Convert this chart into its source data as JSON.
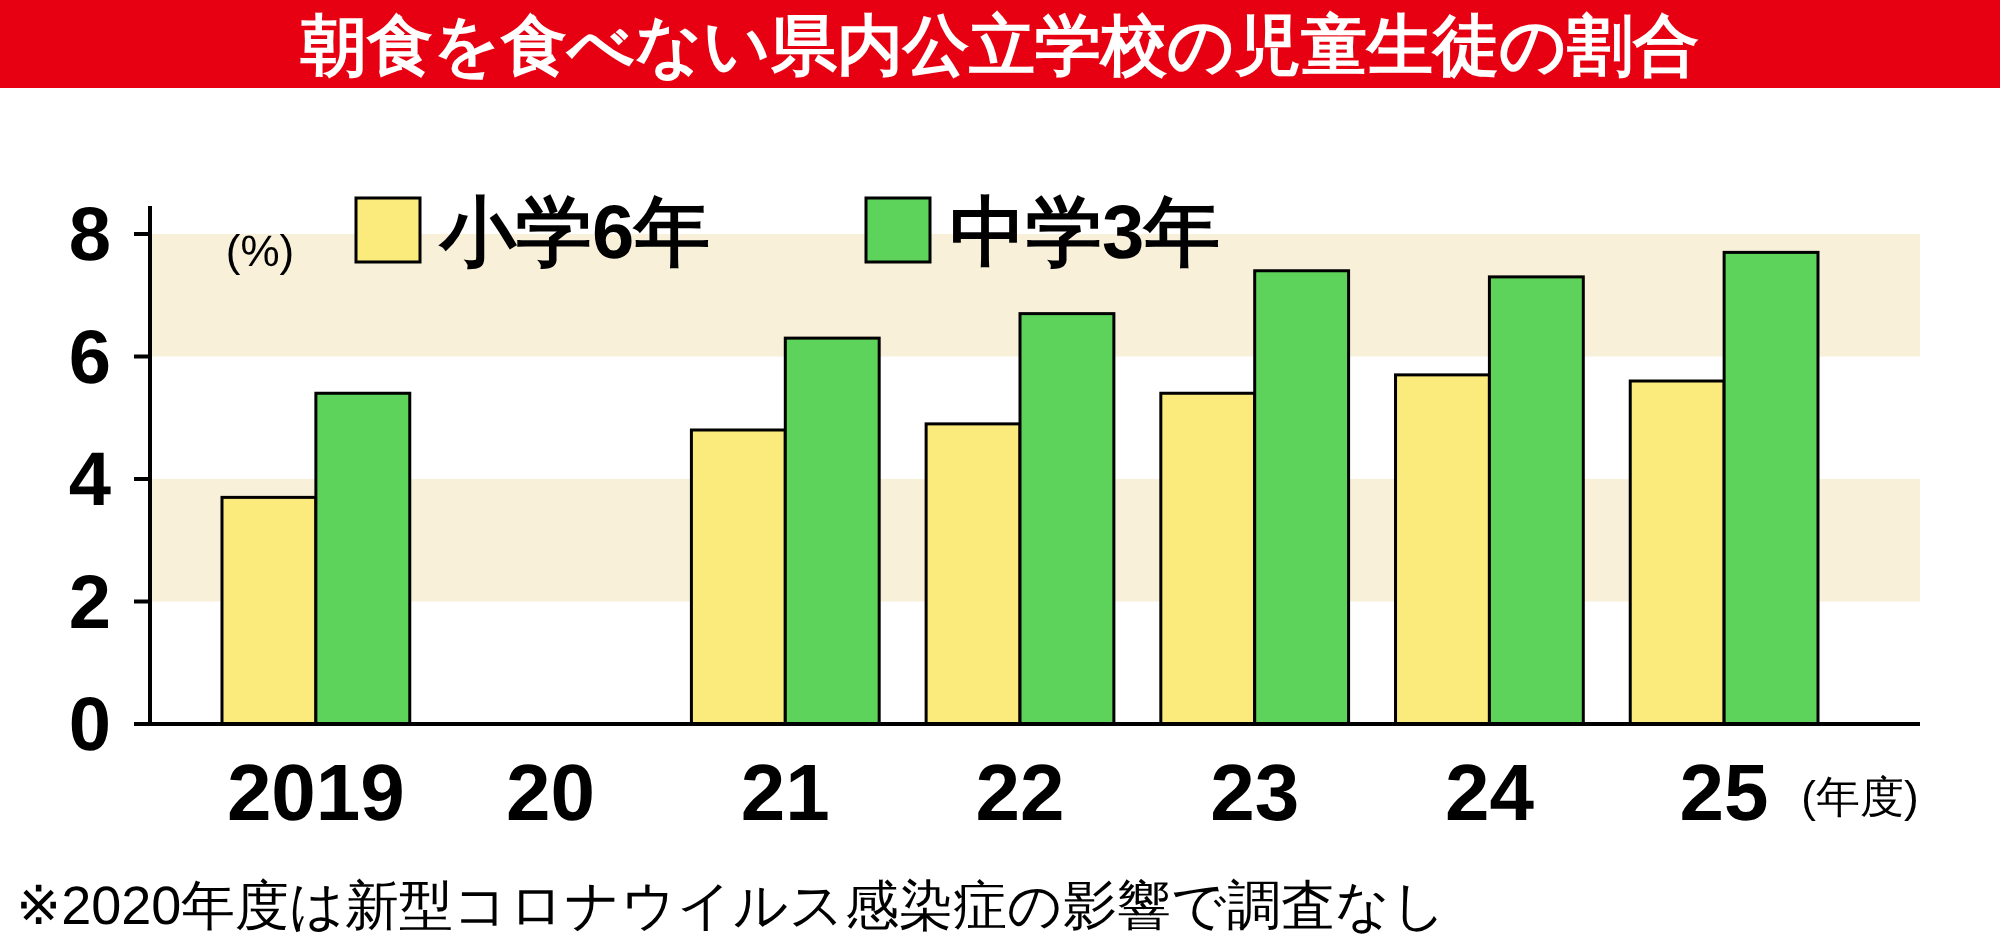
{
  "chart_data": {
    "type": "bar",
    "title": "朝食を食べない県内公立学校の児童生徒の割合",
    "ylabel": "(%)",
    "xlabel": "(年度)",
    "categories": [
      "2019",
      "20",
      "21",
      "22",
      "23",
      "24",
      "25"
    ],
    "series": [
      {
        "name": "小学6年",
        "color": "#fbea7c",
        "values": [
          3.7,
          null,
          4.8,
          4.9,
          5.4,
          5.7,
          5.6
        ]
      },
      {
        "name": "中学3年",
        "color": "#5ed35c",
        "values": [
          5.4,
          null,
          6.3,
          6.7,
          7.4,
          7.3,
          7.7
        ]
      }
    ],
    "ylim": [
      0,
      8
    ],
    "yticks": [
      0,
      2,
      4,
      6,
      8
    ],
    "legend": "top left",
    "bands": [
      {
        "axis": "y",
        "from": 2,
        "to": 4,
        "color": "#f8f0d8"
      },
      {
        "axis": "y",
        "from": 6,
        "to": 8,
        "color": "#f8f0d8"
      }
    ],
    "annotations": [
      "※2020年度は新型コロナウイルス感染症の影響で調査なし"
    ]
  }
}
